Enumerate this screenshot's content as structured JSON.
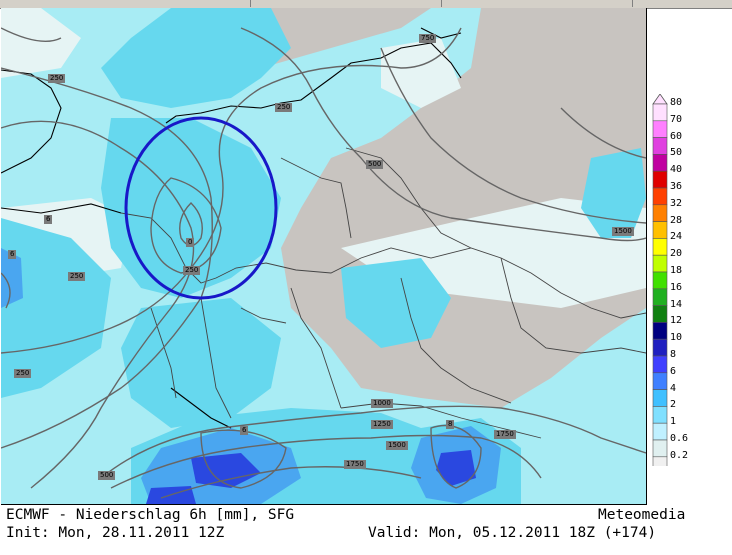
{
  "header": {
    "title_line": "ECMWF - Niederschlag 6h [mm], SFG",
    "init_line": "Init: Mon, 28.11.2011 12Z",
    "valid_line": "Valid: Mon, 05.12.2011 18Z (+174)",
    "brand": "Meteomedia"
  },
  "legend": {
    "levels": [
      "80",
      "70",
      "60",
      "50",
      "40",
      "36",
      "32",
      "28",
      "24",
      "20",
      "18",
      "16",
      "14",
      "12",
      "10",
      "8",
      "6",
      "4",
      "2",
      "1",
      "0.6",
      "0.2"
    ],
    "colors": [
      "#ffe0ff",
      "#ff80ff",
      "#e040e0",
      "#c000a0",
      "#e00000",
      "#ff4000",
      "#ff8000",
      "#ffc000",
      "#ffff00",
      "#c0ff00",
      "#40e000",
      "#20b020",
      "#108010",
      "#000080",
      "#2020c0",
      "#4040ff",
      "#4080ff",
      "#40c0ff",
      "#80e0ff",
      "#c0f0ff",
      "#e0f0f0",
      "#f0f0f0"
    ]
  },
  "isobar_labels": [
    "750",
    "250",
    "250",
    "500",
    "1500",
    "250",
    "250",
    "250",
    "1000",
    "1250",
    "1500",
    "1750",
    "1750",
    "500",
    "6",
    "8",
    "6",
    "0",
    "6"
  ],
  "colors": {
    "land_gray": "#c8c4c0",
    "light_cyan": "#a0f0f8",
    "cyan": "#60d8f0",
    "mid_blue": "#40a0f0",
    "dark_blue": "#2040e0",
    "circle": "#1010c0"
  }
}
